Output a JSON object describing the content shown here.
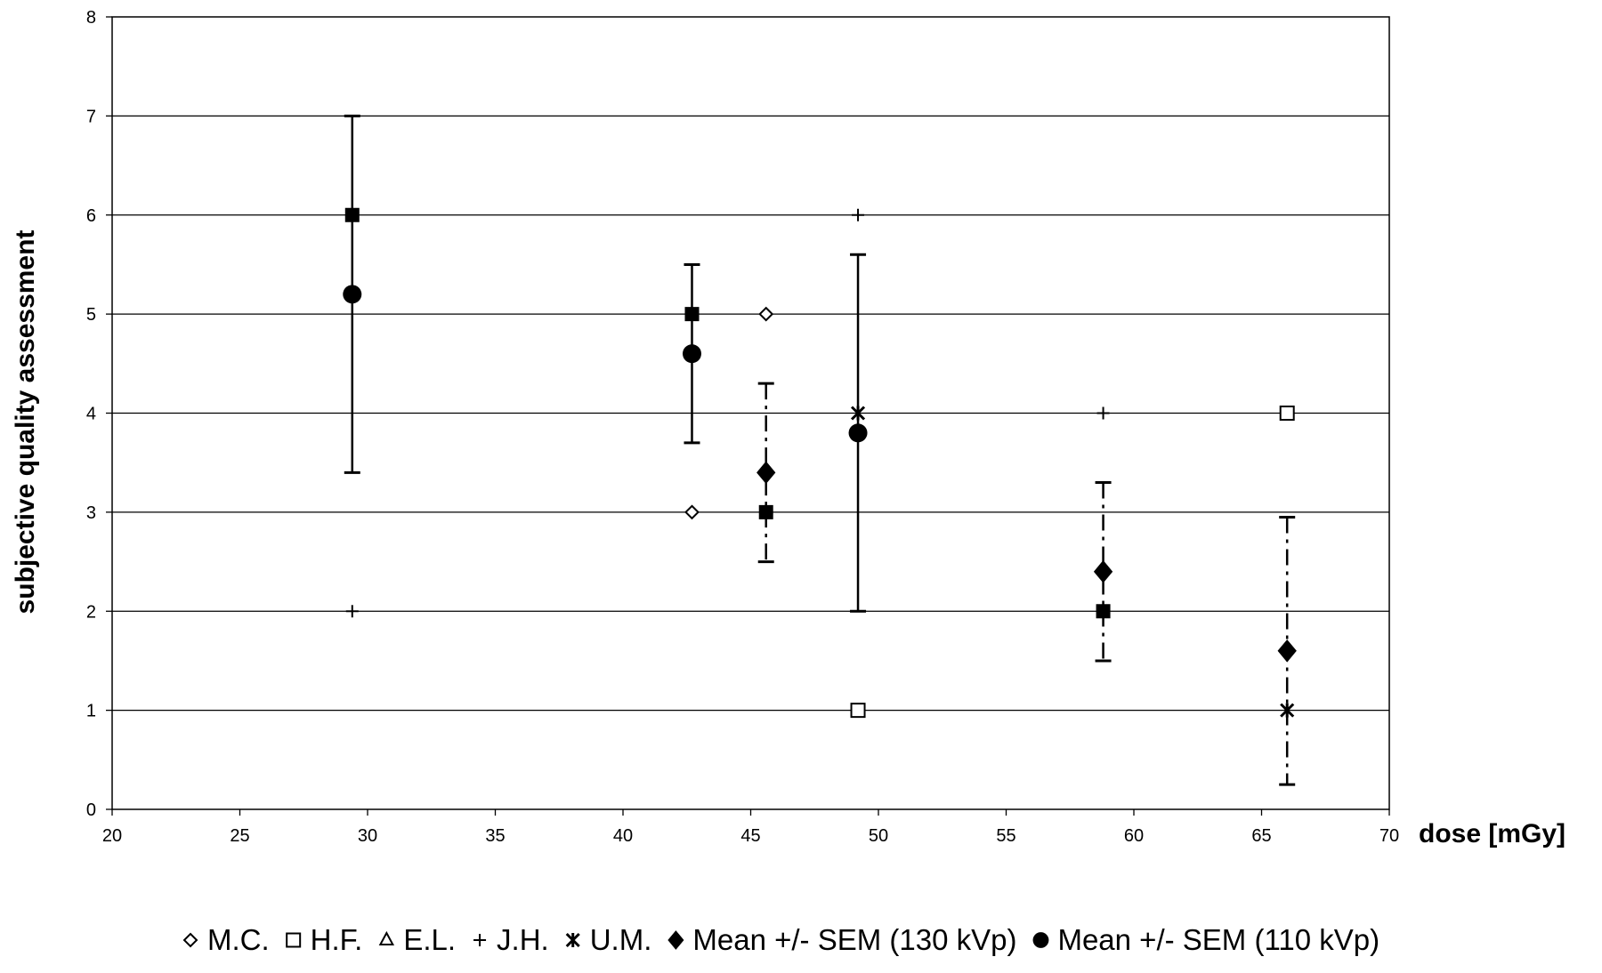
{
  "chart_data": {
    "type": "scatter",
    "title": "",
    "xlabel": "dose [mGy]",
    "ylabel": "subjective quality assessment",
    "xlim": [
      20,
      70
    ],
    "ylim": [
      0,
      8
    ],
    "xticks": [
      20,
      25,
      30,
      35,
      40,
      45,
      50,
      55,
      60,
      65,
      70
    ],
    "yticks": [
      0,
      1,
      2,
      3,
      4,
      5,
      6,
      7,
      8
    ],
    "grid": "horizontal",
    "legend_position": "bottom",
    "series": [
      {
        "name": "M.C.",
        "marker": "diamond-open",
        "points": [
          {
            "x": 42.7,
            "y": 3
          },
          {
            "x": 45.6,
            "y": 5
          }
        ]
      },
      {
        "name": "H.F.",
        "marker": "square-open",
        "points": [
          {
            "x": 49.2,
            "y": 1
          },
          {
            "x": 66.0,
            "y": 4
          }
        ]
      },
      {
        "name": "E.L.",
        "marker": "triangle-open",
        "points": []
      },
      {
        "name": "J.H.",
        "marker": "plus",
        "points": [
          {
            "x": 29.4,
            "y": 2
          },
          {
            "x": 49.2,
            "y": 6
          },
          {
            "x": 58.8,
            "y": 4
          }
        ]
      },
      {
        "name": "U.M.",
        "marker": "star",
        "points": [
          {
            "x": 49.2,
            "y": 4
          },
          {
            "x": 66.0,
            "y": 1
          }
        ]
      },
      {
        "name": "Mean +/- SEM (130 kVp)",
        "marker": "diamond-filled",
        "error_style": "dashdot",
        "points": [
          {
            "x": 45.6,
            "y": 3.4,
            "low": 2.5,
            "high": 4.3
          },
          {
            "x": 58.8,
            "y": 2.4,
            "low": 1.5,
            "high": 3.3
          },
          {
            "x": 66.0,
            "y": 1.6,
            "low": 0.25,
            "high": 2.95
          }
        ]
      },
      {
        "name": "Mean +/- SEM (110 kVp)",
        "marker": "circle-filled",
        "error_style": "solid",
        "points": [
          {
            "x": 29.4,
            "y": 5.2,
            "low": 3.4,
            "high": 7.0
          },
          {
            "x": 42.7,
            "y": 4.6,
            "low": 3.7,
            "high": 5.5
          },
          {
            "x": 49.2,
            "y": 3.8,
            "low": 2.0,
            "high": 5.6
          }
        ]
      }
    ],
    "unlabeled_markers": {
      "marker": "square-filled",
      "points": [
        {
          "x": 29.4,
          "y": 6
        },
        {
          "x": 42.7,
          "y": 5
        },
        {
          "x": 45.6,
          "y": 3
        },
        {
          "x": 58.8,
          "y": 2
        }
      ]
    }
  }
}
